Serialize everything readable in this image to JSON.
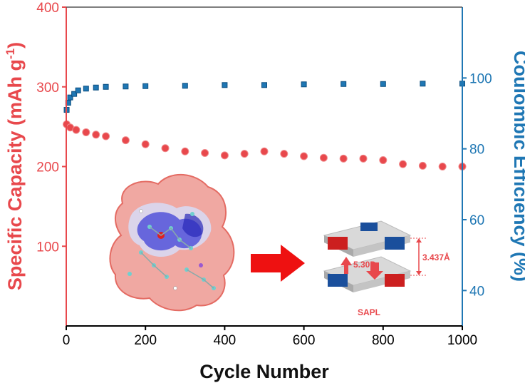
{
  "chart_data": {
    "type": "scatter",
    "xlabel": "Cycle Number",
    "ylabel_left": "Specific Capacity (mAh g",
    "ylabel_left_sup": "-1",
    "ylabel_left_close": ")",
    "ylabel_right": "Coulombic Efficiency (%)",
    "x_ticks": [
      "0",
      "200",
      "400",
      "600",
      "800",
      "1000"
    ],
    "y_left_ticks": [
      "100",
      "200",
      "300",
      "400"
    ],
    "y_right_ticks": [
      "40",
      "60",
      "80",
      "100"
    ],
    "xlim": [
      0,
      1000
    ],
    "ylim_left": [
      0,
      400
    ],
    "ylim_right": [
      30,
      120
    ],
    "grid": false,
    "colors": {
      "capacity": "#e8484c",
      "efficiency": "#1f77b4"
    },
    "series": [
      {
        "axis": "left",
        "x": [
          1,
          10,
          25,
          50,
          75,
          100,
          150,
          200,
          250,
          300,
          350,
          400,
          450,
          500,
          550,
          600,
          650,
          700,
          750,
          800,
          850,
          900,
          950,
          1000
        ],
        "values": [
          253,
          249,
          246,
          243,
          240,
          238,
          233,
          228,
          223,
          219,
          217,
          214,
          216,
          219,
          216,
          213,
          211,
          210,
          210,
          208,
          203,
          201,
          200,
          200
        ]
      },
      {
        "axis": "right",
        "x": [
          1,
          5,
          10,
          20,
          30,
          50,
          75,
          100,
          150,
          200,
          300,
          400,
          500,
          600,
          700,
          800,
          900,
          1000
        ],
        "values": [
          91,
          93,
          94.5,
          95.5,
          96.5,
          97,
          97.3,
          97.5,
          97.6,
          97.7,
          97.8,
          98,
          98,
          98.2,
          98.3,
          98.3,
          98.4,
          98.4
        ]
      }
    ]
  },
  "inset": {
    "dipole": "5.30D",
    "distance": "3.437Å",
    "caption": "SAPL"
  }
}
